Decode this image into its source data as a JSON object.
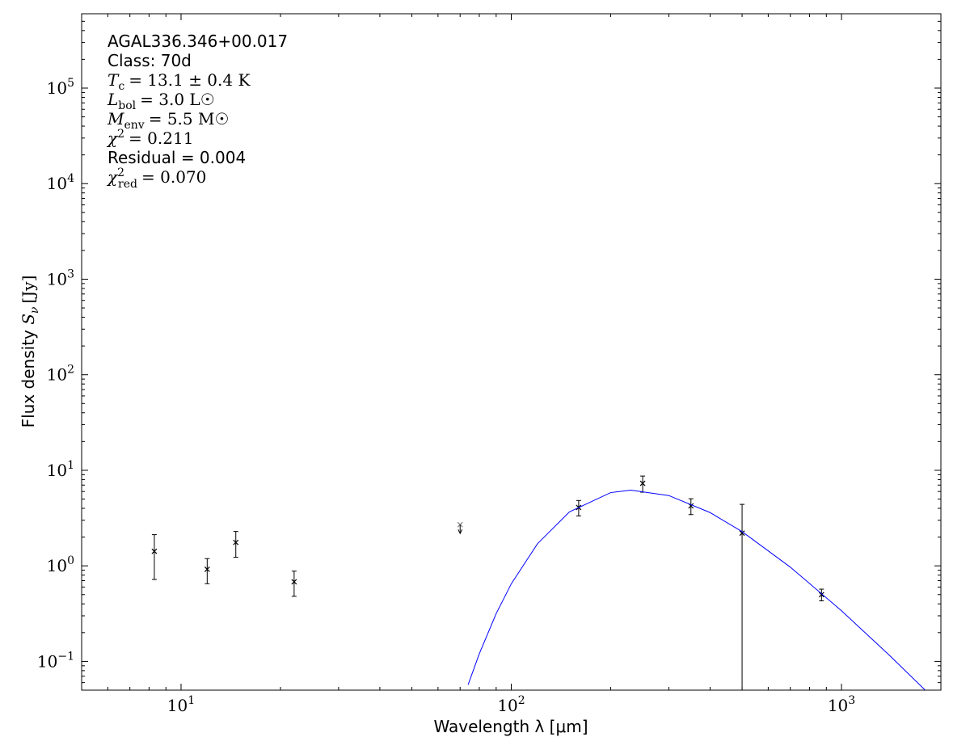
{
  "chart_data": {
    "type": "scatter",
    "x_label": "Wavelength λ [μm]",
    "y_label": {
      "text": "Flux density",
      "symbol": "S",
      "sub": "ν",
      "unit": "[Jy]"
    },
    "log_x": true,
    "log_y": true,
    "xlim": [
      5,
      2000
    ],
    "ylim": [
      0.05,
      600000
    ],
    "xticks": [
      {
        "value": 10,
        "label": "10",
        "exponent": "1"
      },
      {
        "value": 100,
        "label": "10",
        "exponent": "2"
      },
      {
        "value": 1000,
        "label": "10",
        "exponent": "3"
      }
    ],
    "yticks": [
      {
        "value": 0.1,
        "label": "10",
        "exponent": "−1"
      },
      {
        "value": 1,
        "label": "10",
        "exponent": "0"
      },
      {
        "value": 10,
        "label": "10",
        "exponent": "1"
      },
      {
        "value": 100,
        "label": "10",
        "exponent": "2"
      },
      {
        "value": 1000,
        "label": "10",
        "exponent": "3"
      },
      {
        "value": 10000,
        "label": "10",
        "exponent": "4"
      },
      {
        "value": 100000,
        "label": "10",
        "exponent": "5"
      }
    ],
    "annotations": [
      {
        "text": "AGAL336.346+00.017"
      },
      {
        "text": "Class: 70d"
      },
      {
        "symbol": "T",
        "sub": "c",
        "text": "= 13.1 ± 0.4 K"
      },
      {
        "symbol": "L",
        "sub": "bol",
        "text": "= 3.0 L☉"
      },
      {
        "symbol": "M",
        "sub": "env",
        "text": "= 5.5 M☉"
      },
      {
        "symbol": "χ",
        "sup": "2",
        "text": "= 0.211"
      },
      {
        "text": "Residual = 0.004"
      },
      {
        "symbol": "χ",
        "sup": "2",
        "sub": "red",
        "text": "= 0.070"
      }
    ],
    "series": [
      {
        "style": "errorbar",
        "color": "#000000",
        "x": [
          8.3,
          12,
          14.65,
          22,
          160,
          250,
          350,
          500,
          870
        ],
        "values": [
          1.42,
          0.92,
          1.76,
          0.68,
          4.08,
          7.3,
          4.24,
          2.2,
          0.5
        ],
        "errors": [
          0.7,
          0.27,
          0.53,
          0.2,
          0.75,
          1.4,
          0.8,
          2.2,
          0.07
        ]
      },
      {
        "style": "upper-limit",
        "color": "#808080",
        "x": [
          70
        ],
        "values": [
          2.7
        ]
      },
      {
        "style": "line",
        "color": "#0000ff",
        "x": [
          74,
          80,
          90,
          100,
          120,
          150,
          200,
          230,
          300,
          400,
          500,
          700,
          1000,
          1400,
          1800
        ],
        "values": [
          0.057,
          0.12,
          0.316,
          0.648,
          1.7,
          3.67,
          5.84,
          6.2,
          5.44,
          3.61,
          2.28,
          0.969,
          0.339,
          0.115,
          0.0493
        ]
      }
    ]
  }
}
